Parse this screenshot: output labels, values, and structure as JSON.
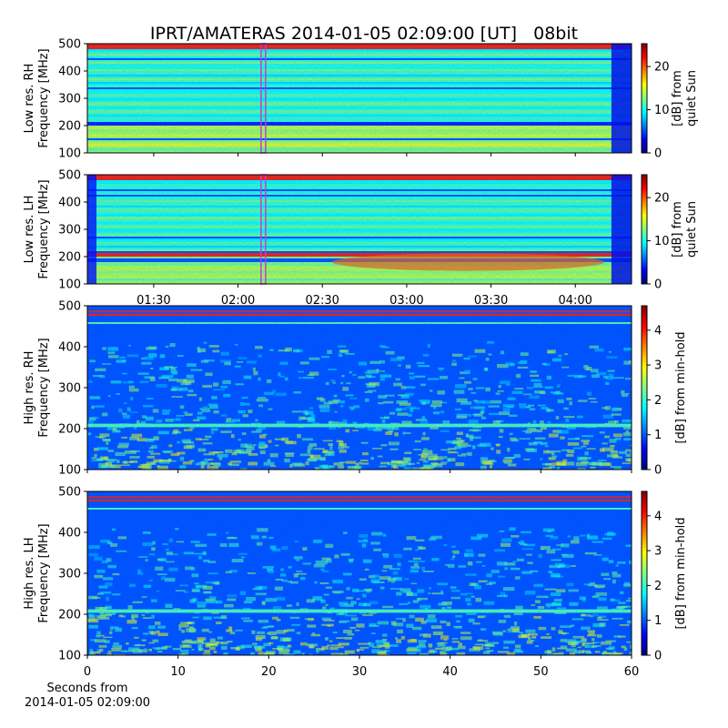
{
  "chart_data": [
    {
      "type": "spectrogram",
      "title": "IPRT/AMATERAS 2014-01-05 02:09:00 [UT]   08bit",
      "ylabel": [
        "Low res. RH",
        "Frequency [MHz]"
      ],
      "ylim": [
        100,
        500
      ],
      "yticks": [
        100,
        200,
        300,
        400,
        500
      ],
      "xlim": [
        66.4,
        260
      ],
      "xticks": [
        90,
        120,
        150,
        180,
        210,
        240
      ],
      "colorbar": {
        "clim": [
          0,
          25.3
        ],
        "ticks": [
          0,
          10,
          20
        ],
        "label": [
          "[dB] from",
          "quiet Sun"
        ],
        "colormap": "jet"
      },
      "marker_x": 129,
      "marker_color": "#c040d0"
    },
    {
      "type": "spectrogram",
      "ylabel": [
        "Low res. LH",
        "Frequency [MHz]"
      ],
      "ylim": [
        100,
        500
      ],
      "yticks": [
        100,
        200,
        300,
        400,
        500
      ],
      "xlim": [
        66.4,
        260
      ],
      "xticks": [
        {
          "value": 90,
          "label": "01:30"
        },
        {
          "value": 120,
          "label": "02:00"
        },
        {
          "value": 150,
          "label": "02:30"
        },
        {
          "value": 180,
          "label": "03:00"
        },
        {
          "value": 210,
          "label": "03:30"
        },
        {
          "value": 240,
          "label": "04:00"
        }
      ],
      "colorbar": {
        "clim": [
          0,
          25.3
        ],
        "ticks": [
          0,
          10,
          20
        ],
        "label": [
          "[dB] from",
          "quiet Sun"
        ],
        "colormap": "jet"
      },
      "marker_x": 129,
      "marker_color": "#c040d0"
    },
    {
      "type": "spectrogram",
      "ylabel": [
        "High res. RH",
        "Frequency [MHz]"
      ],
      "ylim": [
        100,
        500
      ],
      "yticks": [
        100,
        200,
        300,
        400,
        500
      ],
      "xlim": [
        0,
        60
      ],
      "xticks": [
        0,
        10,
        20,
        30,
        40,
        50,
        60
      ],
      "colorbar": {
        "clim": [
          0,
          4.7
        ],
        "ticks": [
          0,
          1,
          2,
          3,
          4
        ],
        "label": [
          "[dB] from min-hold"
        ],
        "colormap": "jet"
      }
    },
    {
      "type": "spectrogram",
      "ylabel": [
        "High res. LH",
        "Frequency [MHz]"
      ],
      "ylim": [
        100,
        500
      ],
      "yticks": [
        100,
        200,
        300,
        400,
        500
      ],
      "xlim": [
        0,
        60
      ],
      "xticks": [
        0,
        10,
        20,
        30,
        40,
        50,
        60
      ],
      "show_xtick_labels": true,
      "xlabel": [
        "Seconds from",
        "2014-01-05 02:09:00"
      ],
      "colorbar": {
        "clim": [
          0,
          4.7
        ],
        "ticks": [
          0,
          1,
          2,
          3,
          4
        ],
        "label": [
          "[dB] from min-hold"
        ],
        "colormap": "jet"
      }
    }
  ]
}
